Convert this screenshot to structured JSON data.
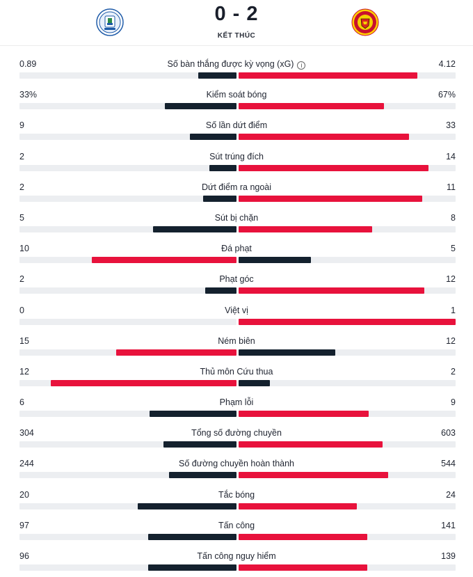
{
  "match": {
    "score": "0 - 2",
    "status": "KẾT THÚC",
    "home_crest_icon": "wigan-athletic-crest-icon",
    "away_crest_icon": "manchester-united-crest-icon"
  },
  "colors": {
    "dark": "#14212e",
    "red": "#e8123c",
    "track": "#eceef1"
  },
  "stats": [
    {
      "label": "Số bàn thắng được kỳ vọng (xG)",
      "home": "0.89",
      "away": "4.12",
      "info": true
    },
    {
      "label": "Kiểm soát bóng",
      "home": "33%",
      "away": "67%"
    },
    {
      "label": "Số lần dứt điểm",
      "home": "9",
      "away": "33"
    },
    {
      "label": "Sút trúng đích",
      "home": "2",
      "away": "14"
    },
    {
      "label": "Dứt điểm ra ngoài",
      "home": "2",
      "away": "11"
    },
    {
      "label": "Sút bị chặn",
      "home": "5",
      "away": "8"
    },
    {
      "label": "Đá phạt",
      "home": "10",
      "away": "5"
    },
    {
      "label": "Phạt góc",
      "home": "2",
      "away": "12"
    },
    {
      "label": "Việt vị",
      "home": "0",
      "away": "1"
    },
    {
      "label": "Ném biên",
      "home": "15",
      "away": "12"
    },
    {
      "label": "Thủ môn Cứu thua",
      "home": "12",
      "away": "2"
    },
    {
      "label": "Phạm lỗi",
      "home": "6",
      "away": "9"
    },
    {
      "label": "Tổng số đường chuyền",
      "home": "304",
      "away": "603"
    },
    {
      "label": "Số đường chuyền hoàn thành",
      "home": "244",
      "away": "544"
    },
    {
      "label": "Tắc bóng",
      "home": "20",
      "away": "24"
    },
    {
      "label": "Tấn công",
      "home": "97",
      "away": "141"
    },
    {
      "label": "Tấn công nguy hiểm",
      "home": "96",
      "away": "139"
    }
  ]
}
